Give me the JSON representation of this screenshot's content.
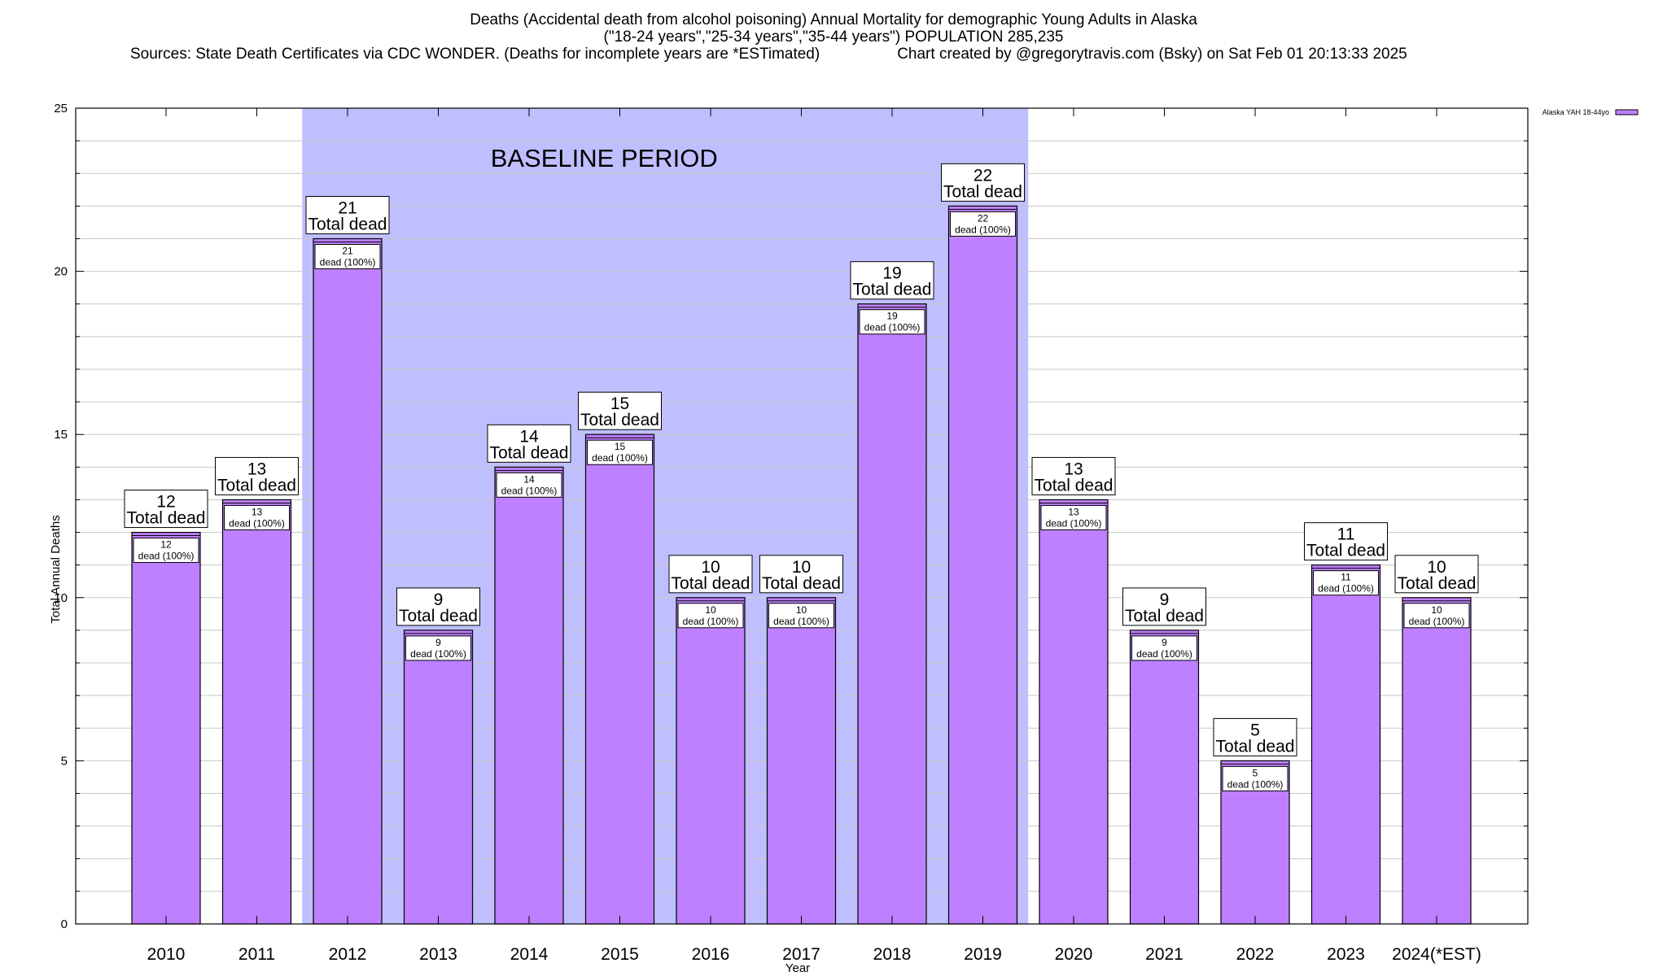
{
  "chart_data": {
    "type": "bar",
    "title": "Deaths (Accidental death from alcohol poisoning) Annual Mortality for demographic Young Adults in Alaska",
    "subtitle": "(\"18-24 years\",\"25-34 years\",\"35-44 years\") POPULATION 285,235",
    "sources": "Sources: State Death Certificates via CDC WONDER. (Deaths for incomplete years are *ESTimated)",
    "credit": "Chart created by @gregorytravis.com (Bsky) on Sat Feb 01 20:13:33 2025",
    "xlabel": "Year",
    "ylabel": "Total Annual Deaths",
    "ylim": [
      0,
      25
    ],
    "yticks": [
      0,
      5,
      10,
      15,
      20,
      25
    ],
    "categories": [
      "2010",
      "2011",
      "2012",
      "2013",
      "2014",
      "2015",
      "2016",
      "2017",
      "2018",
      "2019",
      "2020",
      "2021",
      "2022",
      "2023",
      "2024(*EST)"
    ],
    "series": [
      {
        "name": "Alaska YAH 18-44yo",
        "values": [
          12,
          13,
          21,
          9,
          14,
          15,
          10,
          10,
          19,
          22,
          13,
          9,
          5,
          11,
          10
        ]
      }
    ],
    "total_label": "Total dead",
    "inner_label": "dead (100%)",
    "baseline": {
      "label": "BASELINE PERIOD",
      "from": "2012",
      "to": "2019"
    },
    "legend_position": "top-right",
    "colors": {
      "bar": "#bf80ff",
      "baseline": "#bfbfff",
      "grid": "#c8c8c8"
    }
  }
}
